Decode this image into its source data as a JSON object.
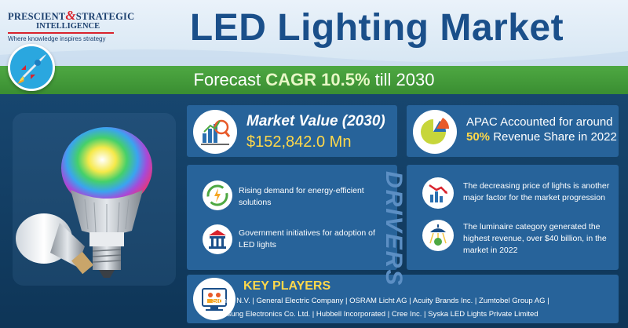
{
  "brand": {
    "line1_a": "PRESCIENT",
    "line1_amp": "&",
    "line1_b": "STRATEGIC",
    "line2": "INTELLIGENCE",
    "tagline": "Where knowledge inspires strategy"
  },
  "title": "LED Lighting Market",
  "forecast": {
    "prefix": "Forecast ",
    "cagr": "CAGR 10.5%",
    "suffix": " till 2030"
  },
  "market_value": {
    "label": "Market Value (2030)",
    "value": "$152,842.0 Mn"
  },
  "apac": {
    "line1": "APAC Accounted for around",
    "highlight": "50%",
    "line2_rest": " Revenue Share in 2022"
  },
  "drivers": {
    "heading": "DRIVERS",
    "left": [
      "Rising demand for energy-efficient solutions",
      "Government initiatives for adoption of LED lights"
    ],
    "right": [
      "The decreasing price of lights is another major factor for the market progression",
      "The luminaire category generated the highest revenue, over $40 billion, in the market in 2022"
    ]
  },
  "key_players": {
    "title": "KEY PLAYERS",
    "line1": "Signify N.V. | General Electric Company | OSRAM Licht AG | Acuity Brands Inc. | Zumtobel Group AG |",
    "line2": "Samsung Electronics Co. Ltd. | Hubbell Incorporated | Cree Inc. | Syska LED Lights Private Limited"
  },
  "icons": [
    "rocket-icon",
    "market-value-icon",
    "pie-chart-icon",
    "energy-cycle-icon",
    "government-building-icon",
    "price-decrease-icon",
    "luminaire-revenue-icon",
    "key-players-icon",
    "led-bulb-illustration"
  ],
  "colors": {
    "brand_blue": "#1a4f8a",
    "accent_green": "#4ea842",
    "highlight_yellow": "#ffd84a",
    "card_blue": "#27639a",
    "background_navy": "#10395f",
    "logo_red": "#d9232d"
  }
}
